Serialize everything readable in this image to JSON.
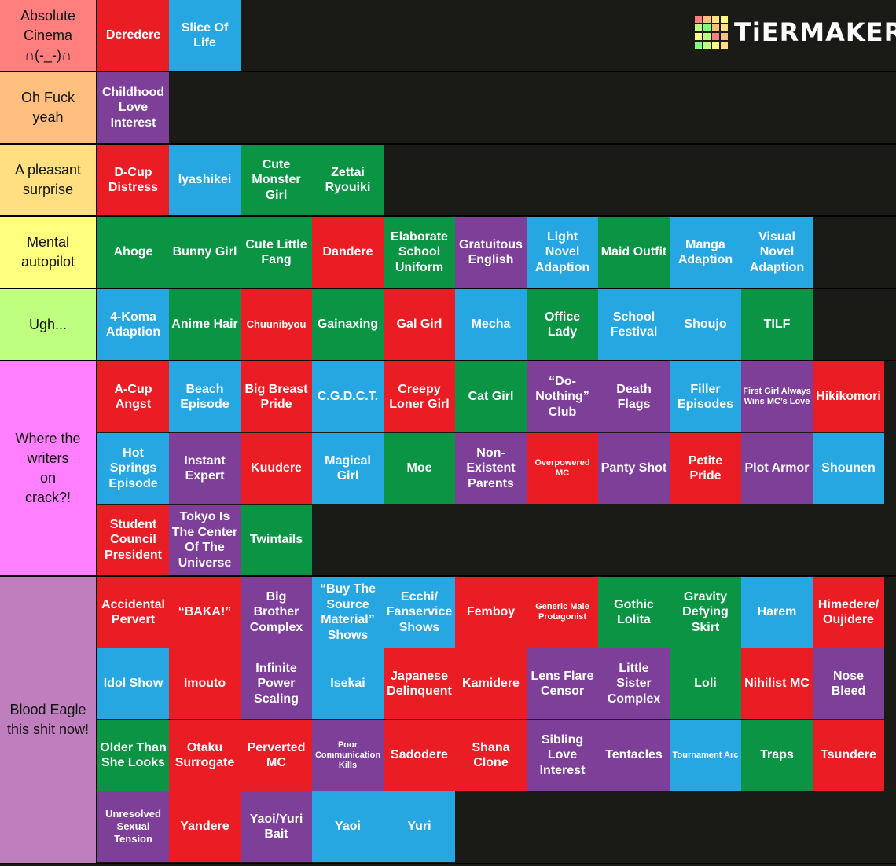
{
  "brand": {
    "name": "TiERMAKER",
    "logo_colors": [
      "#ff7f7f",
      "#ffbf7f",
      "#ffdf7f",
      "#ffff7f",
      "#bfff7f",
      "#7fff7f",
      "#ffbf7f",
      "#ffdf7f",
      "#ffff7f",
      "#bfff7f",
      "#ff7f7f",
      "#ffbf7f",
      "#7fff7f",
      "#bfff7f",
      "#ffff7f",
      "#ffdf7f"
    ]
  },
  "colors": {
    "red": "#ea1c24",
    "blue": "#27a7e1",
    "green": "#0b9444",
    "purple": "#7d3f98",
    "background": "#1a1a17"
  },
  "tiers": [
    {
      "label": "Absolute\nCinema\n∩(-_-)∩",
      "color": "#ff7f7f",
      "items": [
        {
          "text": "Deredere",
          "color": "red"
        },
        {
          "text": "Slice Of Life",
          "color": "blue"
        }
      ]
    },
    {
      "label": "Oh Fuck\nyeah",
      "color": "#ffbf7f",
      "items": [
        {
          "text": "Childhood Love Interest",
          "color": "purple"
        }
      ]
    },
    {
      "label": "A pleasant\nsurprise",
      "color": "#ffdf7f",
      "items": [
        {
          "text": "D-Cup Distress",
          "color": "red"
        },
        {
          "text": "Iyashikei",
          "color": "blue"
        },
        {
          "text": "Cute Monster Girl",
          "color": "green"
        },
        {
          "text": "Zettai Ryouiki",
          "color": "green"
        }
      ]
    },
    {
      "label": "Mental\nautopilot",
      "color": "#ffff7f",
      "items": [
        {
          "text": "Ahoge",
          "color": "green"
        },
        {
          "text": "Bunny Girl",
          "color": "green"
        },
        {
          "text": "Cute Little Fang",
          "color": "green"
        },
        {
          "text": "Dandere",
          "color": "red"
        },
        {
          "text": "Elaborate School Uniform",
          "color": "green"
        },
        {
          "text": "Gratuitous English",
          "color": "purple"
        },
        {
          "text": "Light Novel Adaption",
          "color": "blue"
        },
        {
          "text": "Maid Outfit",
          "color": "green"
        },
        {
          "text": "Manga Adaption",
          "color": "blue"
        },
        {
          "text": "Visual Novel Adaption",
          "color": "blue"
        }
      ]
    },
    {
      "label": "Ugh...",
      "color": "#bfff7f",
      "items": [
        {
          "text": "4-Koma Adaption",
          "color": "blue"
        },
        {
          "text": "Anime Hair",
          "color": "green"
        },
        {
          "text": "Chuunibyou",
          "color": "red",
          "size": "sm"
        },
        {
          "text": "Gainaxing",
          "color": "green"
        },
        {
          "text": "Gal Girl",
          "color": "red"
        },
        {
          "text": "Mecha",
          "color": "blue"
        },
        {
          "text": "Office Lady",
          "color": "green"
        },
        {
          "text": "School Festival",
          "color": "blue"
        },
        {
          "text": "Shoujo",
          "color": "blue"
        },
        {
          "text": "TILF",
          "color": "green"
        }
      ]
    },
    {
      "label": "Where the\n     writers\non         \ncrack?!",
      "color": "#ff7fff",
      "items": [
        {
          "text": "A-Cup Angst",
          "color": "red"
        },
        {
          "text": "Beach Episode",
          "color": "blue"
        },
        {
          "text": "Big Breast Pride",
          "color": "red"
        },
        {
          "text": "C.G.D.C.T.",
          "color": "blue"
        },
        {
          "text": "Creepy Loner Girl",
          "color": "red"
        },
        {
          "text": "Cat Girl",
          "color": "green"
        },
        {
          "text": "“Do-Nothing” Club",
          "color": "purple"
        },
        {
          "text": "Death Flags",
          "color": "purple"
        },
        {
          "text": "Filler Episodes",
          "color": "blue"
        },
        {
          "text": "First Girl Always Wins MC’s Love",
          "color": "purple",
          "size": "xs"
        },
        {
          "text": "Hikikomori",
          "color": "red"
        },
        {
          "text": "Hot Springs Episode",
          "color": "blue"
        },
        {
          "text": "Instant Expert",
          "color": "purple"
        },
        {
          "text": "Kuudere",
          "color": "red"
        },
        {
          "text": "Magical Girl",
          "color": "blue"
        },
        {
          "text": "Moe",
          "color": "green"
        },
        {
          "text": "Non-Existent Parents",
          "color": "purple"
        },
        {
          "text": "Overpowered MC",
          "color": "red",
          "size": "xs"
        },
        {
          "text": "Panty Shot",
          "color": "purple"
        },
        {
          "text": "Petite Pride",
          "color": "red"
        },
        {
          "text": "Plot Armor",
          "color": "purple"
        },
        {
          "text": "Shounen",
          "color": "blue"
        },
        {
          "text": "Student Council President",
          "color": "red"
        },
        {
          "text": "Tokyo Is The Center Of The Universe",
          "color": "purple"
        },
        {
          "text": "Twintails",
          "color": "green"
        }
      ]
    },
    {
      "label": "Blood Eagle\nthis shit now!",
      "color": "#bf7fbf",
      "items": [
        {
          "text": "Accidental Pervert",
          "color": "red"
        },
        {
          "text": "“BAKA!”",
          "color": "red"
        },
        {
          "text": "Big Brother Complex",
          "color": "purple"
        },
        {
          "text": "“Buy The Source Material” Shows",
          "color": "blue"
        },
        {
          "text": "Ecchi/ Fanservice Shows",
          "color": "blue"
        },
        {
          "text": "Femboy",
          "color": "red"
        },
        {
          "text": "Generic Male Protagonist",
          "color": "red",
          "size": "xs"
        },
        {
          "text": "Gothic Lolita",
          "color": "green"
        },
        {
          "text": "Gravity Defying Skirt",
          "color": "green"
        },
        {
          "text": "Harem",
          "color": "blue"
        },
        {
          "text": "Himedere/ Oujidere",
          "color": "red"
        },
        {
          "text": "Idol Show",
          "color": "blue"
        },
        {
          "text": "Imouto",
          "color": "red"
        },
        {
          "text": "Infinite Power Scaling",
          "color": "purple"
        },
        {
          "text": "Isekai",
          "color": "blue"
        },
        {
          "text": "Japanese Delinquent",
          "color": "red"
        },
        {
          "text": "Kamidere",
          "color": "red"
        },
        {
          "text": "Lens Flare Censor",
          "color": "purple"
        },
        {
          "text": "Little Sister Complex",
          "color": "purple"
        },
        {
          "text": "Loli",
          "color": "green"
        },
        {
          "text": "Nihilist MC",
          "color": "red"
        },
        {
          "text": "Nose Bleed",
          "color": "purple"
        },
        {
          "text": "Older Than She Looks",
          "color": "green"
        },
        {
          "text": "Otaku Surrogate",
          "color": "red"
        },
        {
          "text": "Perverted MC",
          "color": "red"
        },
        {
          "text": "Poor Communication Kills",
          "color": "purple",
          "size": "xs"
        },
        {
          "text": "Sadodere",
          "color": "red"
        },
        {
          "text": "Shana Clone",
          "color": "red"
        },
        {
          "text": "Sibling Love Interest",
          "color": "purple"
        },
        {
          "text": "Tentacles",
          "color": "purple"
        },
        {
          "text": "Tournament Arc",
          "color": "blue",
          "size": "xs"
        },
        {
          "text": "Traps",
          "color": "green"
        },
        {
          "text": "Tsundere",
          "color": "red"
        },
        {
          "text": "Unresolved Sexual Tension",
          "color": "purple",
          "size": "sm"
        },
        {
          "text": "Yandere",
          "color": "red"
        },
        {
          "text": "Yaoi/Yuri Bait",
          "color": "purple"
        },
        {
          "text": "Yaoi",
          "color": "blue"
        },
        {
          "text": "Yuri",
          "color": "blue"
        }
      ]
    }
  ]
}
